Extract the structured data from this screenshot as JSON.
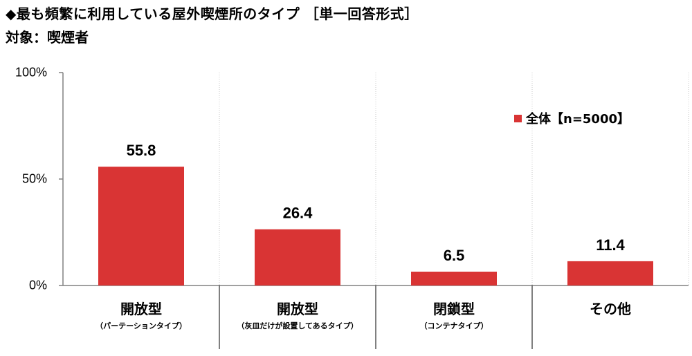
{
  "title": "◆最も頻繁に利用している屋外喫煙所のタイプ ［単一回答形式］",
  "subtitle": "対象：喫煙者",
  "colors": {
    "bar": "#d93434",
    "axis": "#808080",
    "grid": "#c8c8c8"
  },
  "chart_data": {
    "type": "bar",
    "categories": [
      "開放型",
      "開放型",
      "閉鎖型",
      "その他"
    ],
    "category_notes": [
      "（パーテーションタイプ）",
      "（灰皿だけが設置してあるタイプ）",
      "（コンテナタイプ）",
      ""
    ],
    "series": [
      {
        "name": "全体【n=5000】",
        "values": [
          55.8,
          26.4,
          6.5,
          11.4
        ]
      }
    ],
    "value_labels": [
      "55.8",
      "26.4",
      "6.5",
      "11.4"
    ],
    "ylim": [
      0,
      100
    ],
    "yticks": [
      "0%",
      "50%",
      "100%"
    ],
    "ytick_values": [
      0,
      50,
      100
    ],
    "grid": "vertical-dotted",
    "legend_position": "top-right"
  }
}
